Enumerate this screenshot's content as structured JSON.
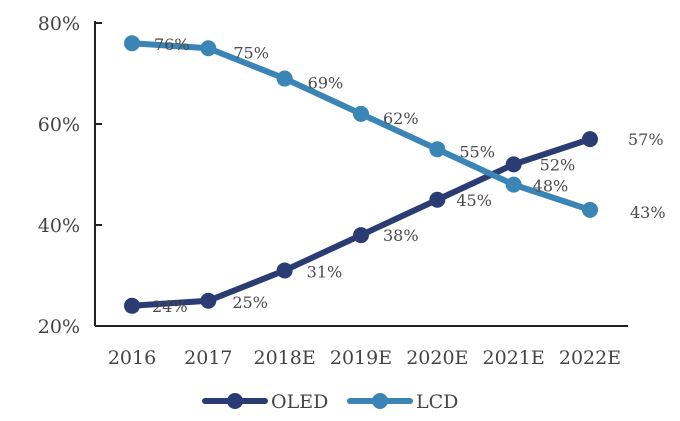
{
  "chart_data": {
    "type": "line",
    "categories": [
      "2016",
      "2017",
      "2018E",
      "2019E",
      "2020E",
      "2021E",
      "2022E"
    ],
    "series": [
      {
        "name": "OLED",
        "values": [
          24,
          25,
          31,
          38,
          45,
          52,
          57
        ],
        "labels": [
          "24%",
          "25%",
          "31%",
          "38%",
          "45%",
          "52%",
          "57%"
        ],
        "color": "#2a3c73"
      },
      {
        "name": "LCD",
        "values": [
          76,
          75,
          69,
          62,
          55,
          48,
          43
        ],
        "labels": [
          "76%",
          "75%",
          "69%",
          "62%",
          "55%",
          "48%",
          "43%"
        ],
        "color": "#3a84b6"
      }
    ],
    "y_ticks": [
      "20%",
      "40%",
      "60%",
      "80%"
    ],
    "ylim": [
      20,
      80
    ],
    "grid": false,
    "legend_position": "bottom-center"
  }
}
